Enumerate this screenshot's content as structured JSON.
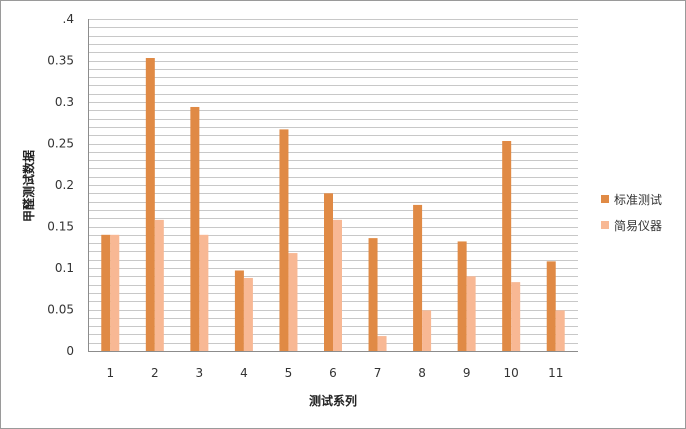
{
  "chart_data": {
    "type": "bar",
    "title": "",
    "xlabel": "测试系列",
    "ylabel": "甲醛测试数据",
    "ylim": [
      0,
      0.4
    ],
    "ytick_step": 0.05,
    "yticks_text": [
      "0",
      "0.05",
      "0.1",
      "0.15",
      "0.2",
      "0.25",
      "0.3",
      "0.35",
      ".4"
    ],
    "minor_grid_step": 0.01,
    "grid": true,
    "legend": "right",
    "categories": [
      "1",
      "2",
      "3",
      "4",
      "5",
      "6",
      "7",
      "8",
      "9",
      "10",
      "11"
    ],
    "series": [
      {
        "name": "标准测试",
        "color": "#e08a45",
        "values": [
          0.14,
          0.353,
          0.294,
          0.097,
          0.267,
          0.19,
          0.136,
          0.176,
          0.132,
          0.253,
          0.108
        ]
      },
      {
        "name": "简易仪器",
        "color": "#f8b894",
        "values": [
          0.14,
          0.158,
          0.14,
          0.088,
          0.118,
          0.158,
          0.018,
          0.049,
          0.09,
          0.083,
          0.049
        ]
      }
    ]
  }
}
